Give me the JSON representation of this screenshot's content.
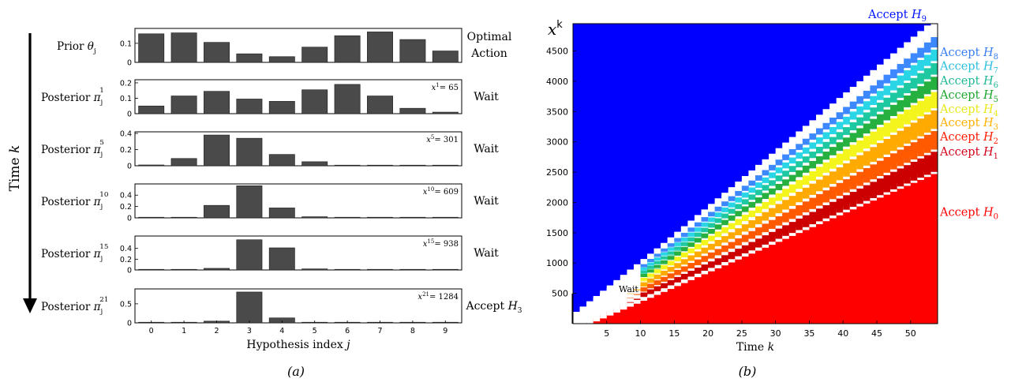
{
  "chart_data": [
    {
      "type": "bar",
      "panel_label": "(a)",
      "time_axis_label": "Time k",
      "xlabel": "Hypothesis index j",
      "categories": [
        "0",
        "1",
        "2",
        "3",
        "4",
        "5",
        "6",
        "7",
        "8",
        "9"
      ],
      "series": [
        {
          "name": "Prior θj",
          "values": [
            0.15,
            0.155,
            0.105,
            0.045,
            0.03,
            0.08,
            0.14,
            0.16,
            0.12,
            0.06
          ],
          "yticks": [
            "0",
            "0.1"
          ],
          "ymax": 0.17,
          "action": "Optimal Action",
          "annotation": ""
        },
        {
          "name": "Posterior πj1",
          "values": [
            0.05,
            0.115,
            0.145,
            0.095,
            0.08,
            0.155,
            0.19,
            0.115,
            0.035,
            0.01
          ],
          "yticks": [
            "0",
            "0.1",
            "0.2"
          ],
          "ymax": 0.21,
          "action": "Wait",
          "annotation": "x1= 65"
        },
        {
          "name": "Posterior πj5",
          "values": [
            0.01,
            0.09,
            0.38,
            0.34,
            0.14,
            0.05,
            0.005,
            0.005,
            0.002,
            0.001
          ],
          "yticks": [
            "0",
            "0.2",
            "0.4"
          ],
          "ymax": 0.4,
          "action": "Wait",
          "annotation": "x5= 301"
        },
        {
          "name": "Posterior πj10",
          "values": [
            0.002,
            0.005,
            0.22,
            0.565,
            0.175,
            0.02,
            0.004,
            0.002,
            0.001,
            0.001
          ],
          "yticks": [
            "0",
            "0.2",
            "0.4"
          ],
          "ymax": 0.57,
          "action": "Wait",
          "annotation": "x10= 609"
        },
        {
          "name": "Posterior πj15",
          "values": [
            0.001,
            0.002,
            0.03,
            0.56,
            0.41,
            0.02,
            0.002,
            0.001,
            0.001,
            0.001
          ],
          "yticks": [
            "0",
            "0.2",
            "0.4"
          ],
          "ymax": 0.6,
          "action": "Wait",
          "annotation": "x15= 938"
        },
        {
          "name": "Posterior πj21",
          "values": [
            0.01,
            0.015,
            0.045,
            0.81,
            0.13,
            0.01,
            0.01,
            0.005,
            0.002,
            0.001
          ],
          "yticks": [
            "0",
            "0.5"
          ],
          "ymax": 0.85,
          "action": "Accept H3",
          "annotation": "x21= 1284"
        }
      ]
    },
    {
      "type": "heatmap",
      "panel_label": "(b)",
      "xlabel": "Time k",
      "ylabel": "xk",
      "xlim": [
        0,
        54
      ],
      "ylim": [
        0,
        4950
      ],
      "xticks": [
        "5",
        "10",
        "15",
        "20",
        "25",
        "30",
        "35",
        "40",
        "45",
        "50"
      ],
      "yticks": [
        "500",
        "1000",
        "1500",
        "2000",
        "2500",
        "3000",
        "3500",
        "4000",
        "4500"
      ],
      "wait_label": "Wait",
      "regions": [
        {
          "label": "Accept H9",
          "color": "#0015ff",
          "label_y": 4950
        },
        {
          "label": "Accept H8",
          "color": "#3a7df0",
          "label_y": 4480
        },
        {
          "label": "Accept H7",
          "color": "#2bbfdc",
          "label_y": 4250
        },
        {
          "label": "Accept H6",
          "color": "#20b896",
          "label_y": 4010
        },
        {
          "label": "Accept H5",
          "color": "#1ca62c",
          "label_y": 3780
        },
        {
          "label": "Accept H4",
          "color": "#e8e81a",
          "label_y": 3545
        },
        {
          "label": "Accept H3",
          "color": "#ffb000",
          "label_y": 3320
        },
        {
          "label": "Accept H2",
          "color": "#ff1a00",
          "label_y": 3085
        },
        {
          "label": "Accept H1",
          "color": "#d4001a",
          "label_y": 2840
        },
        {
          "label": "Accept H0",
          "color": "#ff0000",
          "label_y": 1840
        }
      ],
      "boundary_slopes": [
        48.0,
        54.5,
        60.5,
        66.5,
        72.0,
        76.5,
        80.5,
        84.5,
        88.0
      ],
      "boundary_offsets": [
        -60,
        -40,
        -20,
        0,
        10,
        20,
        30,
        40,
        60
      ],
      "colors": {
        "h0": "#ff0000",
        "h1": "#cc0000",
        "h2": "#ff5a00",
        "h3": "#ffaa00",
        "h4": "#f5f51e",
        "h5": "#26b040",
        "h6": "#1ec8a0",
        "h7": "#2ad6e6",
        "h8": "#3d88ff",
        "h9": "#0000ff",
        "wait": "#ffffff"
      }
    }
  ]
}
